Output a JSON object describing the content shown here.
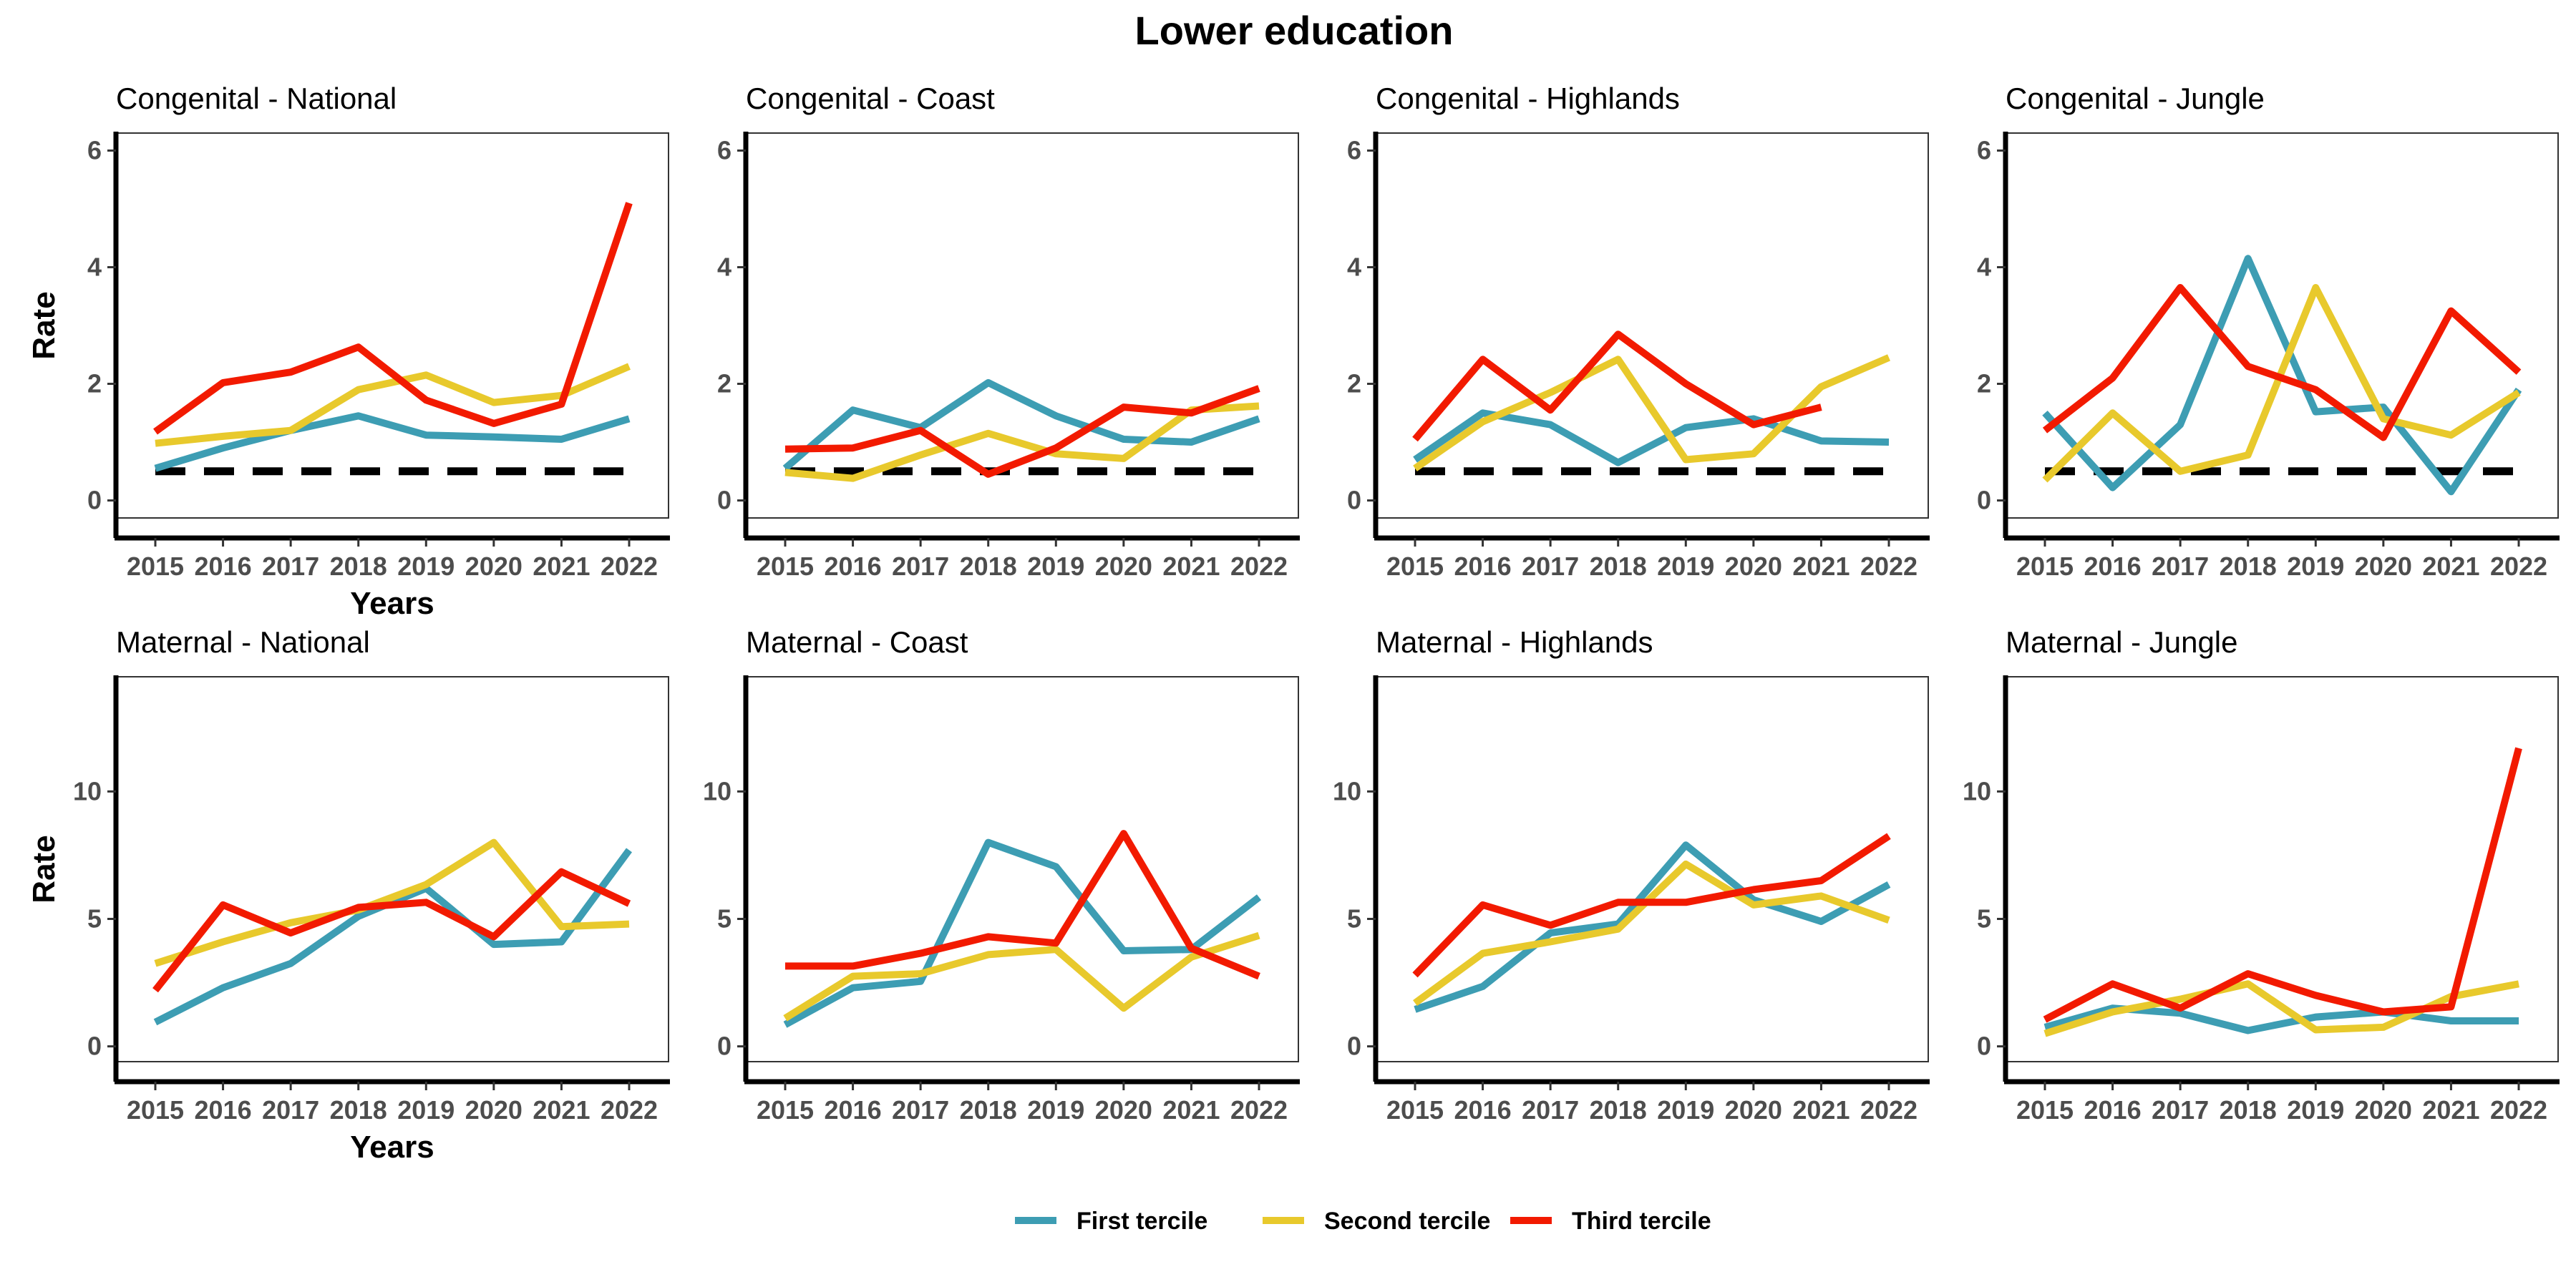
{
  "colors": {
    "First tercile": "#3d9db3",
    "Second tercile": "#e8c92c",
    "Third tercile": "#f21a00",
    "reference": "#000000"
  },
  "chart_data": {
    "type": "line",
    "title": "Lower education",
    "x": [
      2015,
      2016,
      2017,
      2018,
      2019,
      2020,
      2021,
      2022
    ],
    "xlabel": "Years",
    "ylabel": "Rate",
    "legend": {
      "position": "bottom",
      "entries": [
        "First tercile",
        "Second tercile",
        "Third tercile"
      ]
    },
    "grid": false,
    "panels": [
      {
        "title": "Congenital - National",
        "row": 0,
        "col": 0,
        "ylim": [
          -0.3,
          6.3
        ],
        "yticks": [
          0,
          2,
          4,
          6
        ],
        "reference": 0.5,
        "series": [
          {
            "name": "First tercile",
            "values": [
              0.55,
              0.9,
              1.2,
              1.45,
              1.12,
              1.09,
              1.05,
              1.4
            ]
          },
          {
            "name": "Second tercile",
            "values": [
              0.98,
              1.1,
              1.2,
              1.9,
              2.15,
              1.68,
              1.8,
              2.3
            ]
          },
          {
            "name": "Third tercile",
            "values": [
              1.18,
              2.02,
              2.2,
              2.63,
              1.72,
              1.32,
              1.65,
              5.1
            ]
          }
        ]
      },
      {
        "title": "Congenital - Coast",
        "row": 0,
        "col": 1,
        "ylim": [
          -0.3,
          6.3
        ],
        "yticks": [
          0,
          2,
          4,
          6
        ],
        "reference": 0.5,
        "series": [
          {
            "name": "First tercile",
            "values": [
              0.55,
              1.55,
              1.25,
              2.02,
              1.45,
              1.05,
              1.0,
              1.4
            ]
          },
          {
            "name": "Second tercile",
            "values": [
              0.48,
              0.38,
              0.78,
              1.15,
              0.8,
              0.72,
              1.55,
              1.62
            ]
          },
          {
            "name": "Third tercile",
            "values": [
              0.88,
              0.9,
              1.2,
              0.45,
              0.9,
              1.6,
              1.5,
              1.92
            ]
          }
        ]
      },
      {
        "title": "Congenital - Highlands",
        "row": 0,
        "col": 2,
        "ylim": [
          -0.3,
          6.3
        ],
        "yticks": [
          0,
          2,
          4,
          6
        ],
        "reference": 0.5,
        "series": [
          {
            "name": "First tercile",
            "values": [
              0.7,
              1.5,
              1.3,
              0.65,
              1.25,
              1.4,
              1.02,
              1.0
            ]
          },
          {
            "name": "Second tercile",
            "values": [
              0.55,
              1.35,
              1.85,
              2.42,
              0.7,
              0.8,
              1.95,
              2.45
            ]
          },
          {
            "name": "Third tercile",
            "values": [
              1.05,
              2.42,
              1.55,
              2.85,
              2.0,
              1.3,
              1.6,
              null
            ]
          }
        ]
      },
      {
        "title": "Congenital - Jungle",
        "row": 0,
        "col": 3,
        "ylim": [
          -0.3,
          6.3
        ],
        "yticks": [
          0,
          2,
          4,
          6
        ],
        "reference": 0.5,
        "series": [
          {
            "name": "First tercile",
            "values": [
              1.5,
              0.22,
              1.3,
              4.15,
              1.52,
              1.6,
              0.15,
              1.9
            ]
          },
          {
            "name": "Second tercile",
            "values": [
              0.35,
              1.5,
              0.5,
              0.78,
              3.65,
              1.4,
              1.12,
              1.85
            ]
          },
          {
            "name": "Third tercile",
            "values": [
              1.2,
              2.1,
              3.65,
              2.3,
              1.9,
              1.08,
              3.25,
              2.2
            ]
          }
        ]
      },
      {
        "title": "Maternal - National",
        "row": 1,
        "col": 0,
        "ylim": [
          -0.6,
          14.5
        ],
        "yticks": [
          0,
          5,
          10
        ],
        "reference": null,
        "series": [
          {
            "name": "First tercile",
            "values": [
              0.95,
              2.3,
              3.25,
              5.1,
              6.2,
              4.0,
              4.1,
              7.7
            ]
          },
          {
            "name": "Second tercile",
            "values": [
              3.25,
              4.1,
              4.85,
              5.35,
              6.35,
              8.0,
              4.7,
              4.8
            ]
          },
          {
            "name": "Third tercile",
            "values": [
              2.2,
              5.55,
              4.45,
              5.45,
              5.65,
              4.3,
              6.85,
              5.6
            ]
          }
        ]
      },
      {
        "title": "Maternal - Coast",
        "row": 1,
        "col": 1,
        "ylim": [
          -0.6,
          14.5
        ],
        "yticks": [
          0,
          5,
          10
        ],
        "reference": null,
        "series": [
          {
            "name": "First tercile",
            "values": [
              0.85,
              2.3,
              2.55,
              8.0,
              7.05,
              3.75,
              3.8,
              5.85
            ]
          },
          {
            "name": "Second tercile",
            "values": [
              1.1,
              2.75,
              2.85,
              3.6,
              3.8,
              1.5,
              3.5,
              4.35
            ]
          },
          {
            "name": "Third tercile",
            "values": [
              3.15,
              3.15,
              3.65,
              4.3,
              4.05,
              8.35,
              3.85,
              2.75
            ]
          }
        ]
      },
      {
        "title": "Maternal - Highlands",
        "row": 1,
        "col": 2,
        "ylim": [
          -0.6,
          14.5
        ],
        "yticks": [
          0,
          5,
          10
        ],
        "reference": null,
        "series": [
          {
            "name": "First tercile",
            "values": [
              1.45,
              2.35,
              4.45,
              4.8,
              7.9,
              5.75,
              4.9,
              6.35
            ]
          },
          {
            "name": "Second tercile",
            "values": [
              1.7,
              3.65,
              4.1,
              4.6,
              7.15,
              5.55,
              5.9,
              4.95
            ]
          },
          {
            "name": "Third tercile",
            "values": [
              2.8,
              5.55,
              4.75,
              5.65,
              5.65,
              6.15,
              6.5,
              8.25
            ]
          }
        ]
      },
      {
        "title": "Maternal - Jungle",
        "row": 1,
        "col": 3,
        "ylim": [
          -0.6,
          14.5
        ],
        "yticks": [
          0,
          5,
          10
        ],
        "reference": null,
        "series": [
          {
            "name": "First tercile",
            "values": [
              0.75,
              1.5,
              1.3,
              0.62,
              1.15,
              1.35,
              1.0,
              1.0
            ]
          },
          {
            "name": "Second tercile",
            "values": [
              0.5,
              1.35,
              1.85,
              2.45,
              0.65,
              0.75,
              1.95,
              2.45
            ]
          },
          {
            "name": "Third tercile",
            "values": [
              1.05,
              2.45,
              1.5,
              2.85,
              2.0,
              1.35,
              1.55,
              11.7
            ]
          }
        ]
      }
    ]
  }
}
